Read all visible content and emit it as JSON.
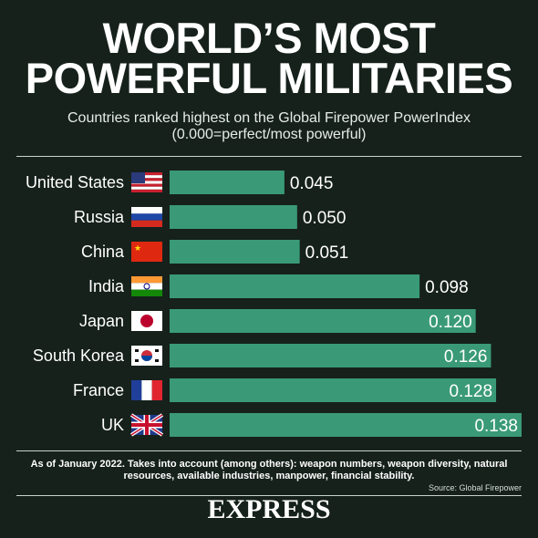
{
  "header": {
    "title_line_1": "WORLD’S MOST",
    "title_line_2": "POWERFUL MILITARIES",
    "subtitle_line_1": "Countries ranked highest on the Global Firepower PowerIndex",
    "subtitle_line_2": "(0.000=perfect/most powerful)"
  },
  "chart_data": {
    "type": "bar",
    "orientation": "horizontal",
    "categories": [
      "United States",
      "Russia",
      "China",
      "India",
      "Japan",
      "South Korea",
      "France",
      "UK"
    ],
    "values": [
      0.045,
      0.05,
      0.051,
      0.098,
      0.12,
      0.126,
      0.128,
      0.138
    ],
    "value_labels": [
      "0.045",
      "0.050",
      "0.051",
      "0.098",
      "0.120",
      "0.126",
      "0.128",
      "0.138"
    ],
    "flag_icons": [
      "us-flag-icon",
      "russia-flag-icon",
      "china-flag-icon",
      "india-flag-icon",
      "japan-flag-icon",
      "south-korea-flag-icon",
      "france-flag-icon",
      "uk-flag-icon"
    ],
    "bar_color": "#3a9a78",
    "grid": false,
    "legend": "none"
  },
  "footer": {
    "note": "As of January 2022. Takes into account (among others): weapon numbers, weapon diversity, natural resources, available industries, manpower, financial stability.",
    "source": "Source:  Global Firepower",
    "brand": "EXPRESS"
  },
  "colors": {
    "background": "#16211c",
    "bar": "#3a9a78",
    "text": "#ffffff"
  }
}
